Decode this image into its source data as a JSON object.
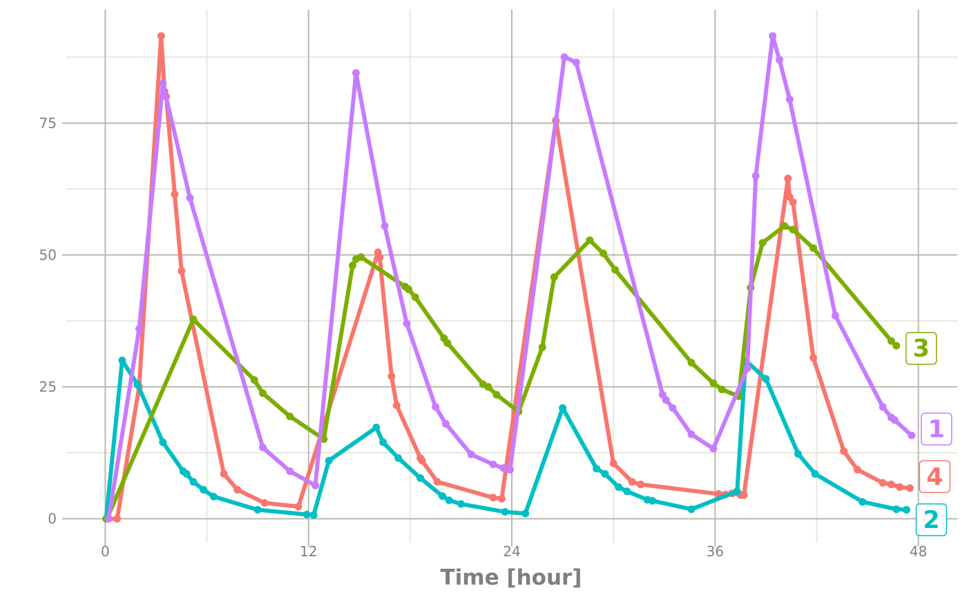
{
  "chart_data": {
    "type": "line",
    "title": "",
    "xlabel": "Time [hour]",
    "ylabel": "",
    "xlim": [
      -2.3,
      50.3
    ],
    "ylim": [
      -4.5,
      96.5
    ],
    "x_ticks": [
      0,
      12,
      24,
      36,
      48
    ],
    "x_minor_ticks": [
      6,
      18,
      30,
      42
    ],
    "y_ticks": [
      0,
      25,
      50,
      75
    ],
    "y_minor_ticks": [
      12.5,
      37.5,
      62.5,
      87.5
    ],
    "grid": true,
    "legend": "none",
    "series": [
      {
        "name": "4",
        "color": "#F8766D",
        "x": [
          0.1,
          0.7,
          2.0,
          3.3,
          3.5,
          3.6,
          4.1,
          4.5,
          7.0,
          7.8,
          9.4,
          11.4,
          16.1,
          16.2,
          16.9,
          17.2,
          18.6,
          18.7,
          19.6,
          22.9,
          23.4,
          26.6,
          30.0,
          31.1,
          31.6,
          36.2,
          36.6,
          37.0,
          37.5,
          37.7,
          40.3,
          40.4,
          40.6,
          41.8,
          43.6,
          44.4,
          45.9,
          46.4,
          46.9,
          47.5
        ],
        "y": [
          0,
          0,
          25,
          91.5,
          81,
          80,
          61.5,
          47,
          8.5,
          5.5,
          3,
          2.3,
          50.5,
          49.5,
          27,
          21.5,
          11.5,
          11,
          7,
          4,
          3.8,
          75.5,
          10.5,
          7,
          6.5,
          4.7,
          4.6,
          4.8,
          4.5,
          4.5,
          64.5,
          61,
          60,
          30.5,
          12.8,
          9.3,
          6.8,
          6.5,
          6,
          5.8
        ]
      },
      {
        "name": "2",
        "color": "#00BFC4",
        "x": [
          0.05,
          1.0,
          1.9,
          3.4,
          4.6,
          4.8,
          5.2,
          5.8,
          6.4,
          9.0,
          11.9,
          12.3,
          13.2,
          16.0,
          16.4,
          17.3,
          18.6,
          19.9,
          20.3,
          21.0,
          23.6,
          24.8,
          27.0,
          29.0,
          29.5,
          30.3,
          30.8,
          32.0,
          32.3,
          34.6,
          37.3,
          37.8,
          39.0,
          40.9,
          41.9,
          44.7,
          46.7,
          47.3
        ],
        "y": [
          0,
          30,
          25.5,
          14.5,
          9,
          8.5,
          7,
          5.5,
          4.2,
          1.7,
          0.8,
          0.7,
          11,
          17.3,
          14.5,
          11.5,
          7.7,
          4.3,
          3.5,
          2.8,
          1.3,
          1.0,
          21,
          9.5,
          8.5,
          6,
          5.2,
          3.6,
          3.4,
          1.8,
          5.2,
          30,
          26.5,
          12.3,
          8.5,
          3.2,
          1.8,
          1.7
        ]
      },
      {
        "name": "3",
        "color": "#7CAE00",
        "x": [
          0.1,
          5.2,
          8.8,
          9.3,
          10.9,
          12.9,
          14.6,
          14.8,
          15.1,
          17.7,
          17.9,
          18.3,
          20.0,
          20.2,
          22.3,
          22.6,
          23.1,
          24.4,
          25.8,
          26.5,
          28.6,
          29.4,
          30.1,
          34.6,
          35.9,
          36.4,
          37.4,
          38.1,
          38.8,
          40.1,
          40.6,
          41.8,
          46.4,
          46.7
        ],
        "y": [
          0,
          37.8,
          26.3,
          23.8,
          19.4,
          15.1,
          48,
          49.2,
          49.6,
          44,
          43.5,
          42,
          34.2,
          33.3,
          25.5,
          25,
          23.5,
          20.3,
          32.5,
          45.8,
          52.8,
          50.3,
          47.2,
          29.6,
          25.7,
          24.5,
          23.2,
          43.8,
          52.3,
          55.5,
          54.8,
          51.3,
          33.7,
          32.8
        ]
      },
      {
        "name": "1",
        "color": "#C77CFF",
        "x": [
          0.2,
          2.0,
          3.4,
          5.0,
          9.3,
          10.9,
          12.4,
          14.8,
          16.5,
          17.8,
          19.5,
          20.1,
          21.6,
          22.9,
          23.5,
          23.9,
          27.1,
          27.8,
          32.9,
          33.1,
          33.5,
          34.6,
          35.9,
          37.9,
          38.4,
          39.4,
          39.8,
          40.4,
          43.1,
          45.9,
          46.4,
          46.6,
          47.6
        ],
        "y": [
          0,
          36,
          82.5,
          60.8,
          13.5,
          9,
          6.3,
          84.5,
          55.5,
          37,
          21.2,
          18,
          12.2,
          10.3,
          9.6,
          9.3,
          87.5,
          86.5,
          23.5,
          22.5,
          21,
          16,
          13.3,
          28.5,
          65,
          91.5,
          87,
          79.5,
          38.5,
          21.2,
          19.2,
          18.7,
          15.8
        ]
      }
    ],
    "end_labels": [
      {
        "series": "3",
        "text": "3",
        "color": "#7CAE00",
        "y": 32.3
      },
      {
        "series": "1",
        "text": "1",
        "color": "#C77CFF",
        "y": 17.0
      },
      {
        "series": "4",
        "text": "4",
        "color": "#F8766D",
        "y": 8.0
      },
      {
        "series": "2",
        "text": "2",
        "color": "#00BFC4",
        "y": -0.2
      }
    ]
  }
}
